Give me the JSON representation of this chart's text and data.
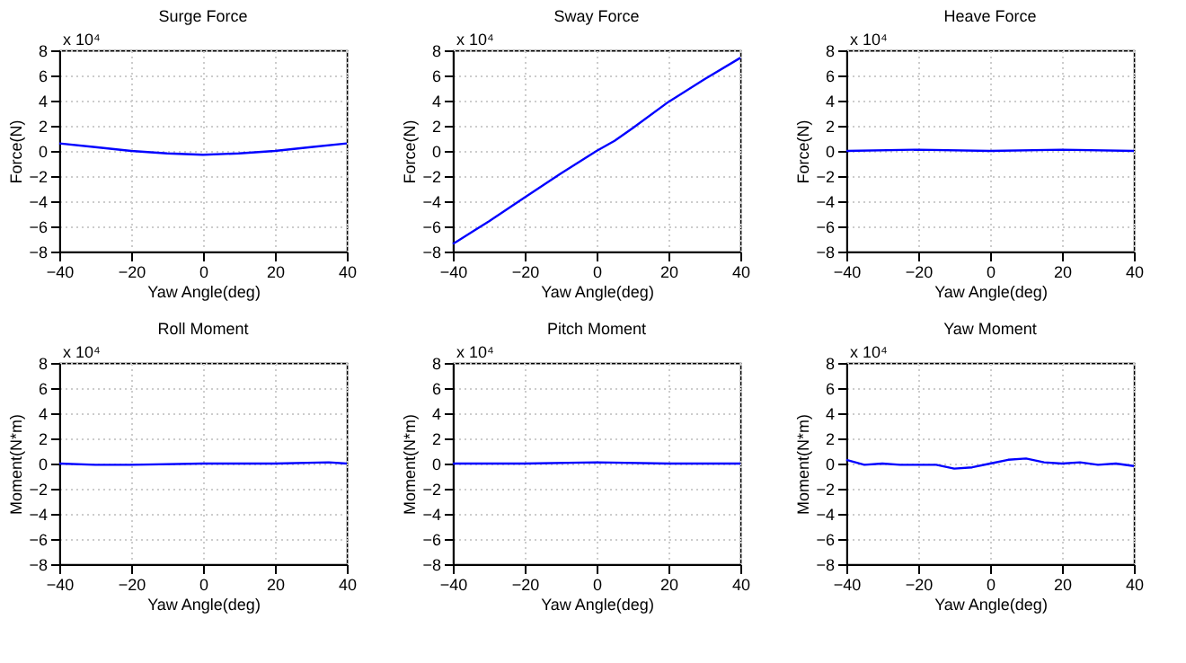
{
  "chart_data": [
    {
      "type": "line",
      "title": "Surge Force",
      "xlabel": "Yaw Angle(deg)",
      "ylabel": "Force(N)",
      "annotations": [
        "x 10⁴"
      ],
      "xlim": [
        -40,
        40
      ],
      "ylim": [
        -8,
        8
      ],
      "xticks": [
        -40,
        -20,
        0,
        20,
        40
      ],
      "yticks": [
        -8,
        -6,
        -4,
        -2,
        0,
        2,
        4,
        6,
        8
      ],
      "grid": true,
      "x": [
        -40,
        -30,
        -20,
        -10,
        0,
        10,
        20,
        30,
        40
      ],
      "series": [
        {
          "color": "#0000ff",
          "values": [
            0.6,
            0.3,
            0.0,
            -0.2,
            -0.3,
            -0.2,
            0.0,
            0.3,
            0.6
          ]
        }
      ]
    },
    {
      "type": "line",
      "title": "Sway Force",
      "xlabel": "Yaw Angle(deg)",
      "ylabel": "Force(N)",
      "annotations": [
        "x 10⁴"
      ],
      "xlim": [
        -40,
        40
      ],
      "ylim": [
        -8,
        8
      ],
      "xticks": [
        -40,
        -20,
        0,
        20,
        40
      ],
      "yticks": [
        -8,
        -6,
        -4,
        -2,
        0,
        2,
        4,
        6,
        8
      ],
      "grid": true,
      "x": [
        -40,
        -30,
        -20,
        -10,
        0,
        5,
        10,
        20,
        30,
        40
      ],
      "series": [
        {
          "color": "#0000ff",
          "values": [
            -7.4,
            -5.6,
            -3.7,
            -1.8,
            0.0,
            0.8,
            1.8,
            3.9,
            5.7,
            7.4
          ]
        }
      ]
    },
    {
      "type": "line",
      "title": "Heave Force",
      "xlabel": "Yaw Angle(deg)",
      "ylabel": "Force(N)",
      "annotations": [
        "x 10⁴"
      ],
      "xlim": [
        -40,
        40
      ],
      "ylim": [
        -8,
        8
      ],
      "xticks": [
        -40,
        -20,
        0,
        20,
        40
      ],
      "yticks": [
        -8,
        -6,
        -4,
        -2,
        0,
        2,
        4,
        6,
        8
      ],
      "grid": true,
      "x": [
        -40,
        -20,
        0,
        20,
        40
      ],
      "series": [
        {
          "color": "#0000ff",
          "values": [
            0.0,
            0.1,
            0.0,
            0.1,
            0.0
          ]
        }
      ]
    },
    {
      "type": "line",
      "title": "Roll Moment",
      "xlabel": "Yaw Angle(deg)",
      "ylabel": "Moment(N*m)",
      "annotations": [
        "x 10⁴"
      ],
      "xlim": [
        -40,
        40
      ],
      "ylim": [
        -8,
        8
      ],
      "xticks": [
        -40,
        -20,
        0,
        20,
        40
      ],
      "yticks": [
        -8,
        -6,
        -4,
        -2,
        0,
        2,
        4,
        6,
        8
      ],
      "grid": true,
      "x": [
        -40,
        -30,
        -20,
        0,
        20,
        35,
        40
      ],
      "series": [
        {
          "color": "#0000ff",
          "values": [
            0.0,
            -0.1,
            -0.1,
            0.0,
            0.0,
            0.1,
            0.0
          ]
        }
      ]
    },
    {
      "type": "line",
      "title": "Pitch Moment",
      "xlabel": "Yaw Angle(deg)",
      "ylabel": "Moment(N*m)",
      "annotations": [
        "x 10⁴"
      ],
      "xlim": [
        -40,
        40
      ],
      "ylim": [
        -8,
        8
      ],
      "xticks": [
        -40,
        -20,
        0,
        20,
        40
      ],
      "yticks": [
        -8,
        -6,
        -4,
        -2,
        0,
        2,
        4,
        6,
        8
      ],
      "grid": true,
      "x": [
        -40,
        -20,
        0,
        20,
        40
      ],
      "series": [
        {
          "color": "#0000ff",
          "values": [
            0.0,
            0.0,
            0.1,
            0.0,
            0.0
          ]
        }
      ]
    },
    {
      "type": "line",
      "title": "Yaw Moment",
      "xlabel": "Yaw Angle(deg)",
      "ylabel": "Moment(N*m)",
      "annotations": [
        "x 10⁴"
      ],
      "xlim": [
        -40,
        40
      ],
      "ylim": [
        -8,
        8
      ],
      "xticks": [
        -40,
        -20,
        0,
        20,
        40
      ],
      "yticks": [
        -8,
        -6,
        -4,
        -2,
        0,
        2,
        4,
        6,
        8
      ],
      "grid": true,
      "x": [
        -40,
        -35,
        -30,
        -25,
        -20,
        -15,
        -10,
        -5,
        0,
        5,
        10,
        15,
        20,
        25,
        30,
        35,
        40
      ],
      "series": [
        {
          "color": "#0000ff",
          "values": [
            0.3,
            -0.1,
            0.0,
            -0.1,
            -0.1,
            -0.1,
            -0.4,
            -0.3,
            0.0,
            0.3,
            0.4,
            0.1,
            0.0,
            0.1,
            -0.1,
            0.0,
            -0.2
          ]
        }
      ]
    }
  ]
}
